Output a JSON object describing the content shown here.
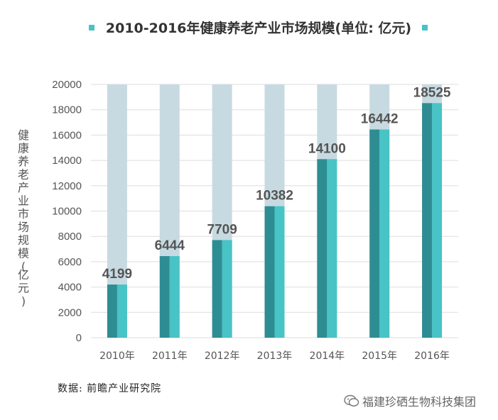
{
  "colors": {
    "bg_bar": "#c7dae1",
    "bar_dark": "#2e8d93",
    "bar_light": "#48c3c6",
    "legend_marker": "#48c3c6",
    "text": "#555555"
  },
  "source": "数据: 前瞻产业研究院",
  "watermark": "福建珍硒生物科技集团",
  "chart_data": {
    "type": "bar",
    "title": "2010-2016年健康养老产业市场规模(单位: 亿元)",
    "ylabel": "健康养老产业市场规模(亿元)",
    "xlabel": "",
    "categories": [
      "2010年",
      "2011年",
      "2012年",
      "2013年",
      "2014年",
      "2015年",
      "2016年"
    ],
    "values": [
      4199,
      6444,
      7709,
      10382,
      14100,
      16442,
      18525
    ],
    "ylim": [
      0,
      20000
    ],
    "yticks": [
      0,
      2000,
      4000,
      6000,
      8000,
      10000,
      12000,
      14000,
      16000,
      18000,
      20000
    ],
    "background_max": 20000,
    "legend": "top-center",
    "grid": true
  }
}
